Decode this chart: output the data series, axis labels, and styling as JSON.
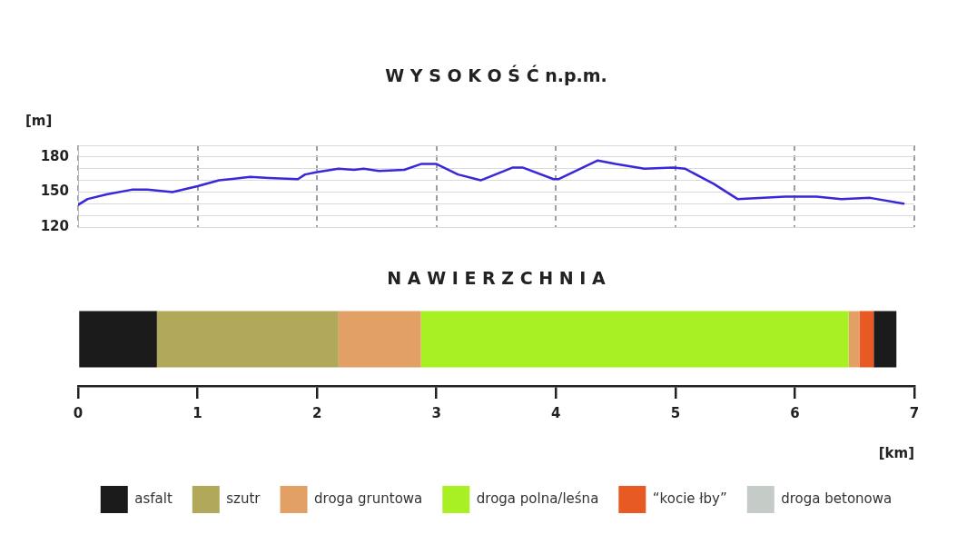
{
  "chart_data": [
    {
      "type": "line",
      "title": "W Y S O K O Ś Ć n.p.m.",
      "ylabel": "[m]",
      "xlim": [
        0,
        7
      ],
      "xticks": [
        0,
        1,
        2,
        3,
        4,
        5,
        6,
        7
      ],
      "ylim": [
        120,
        190
      ],
      "yticks": [
        120,
        {
          "value": 130,
          "label": null
        },
        {
          "value": 140,
          "label": null
        },
        150,
        {
          "value": 160,
          "label": null
        },
        {
          "value": 170,
          "label": null
        },
        180,
        {
          "value": 190,
          "label": null
        }
      ],
      "grid": true,
      "tick_labels": "y",
      "legend": false,
      "marker": "none",
      "line_style": "solid",
      "x": [
        0,
        0.08,
        0.24,
        0.45,
        0.58,
        0.79,
        1.0,
        1.18,
        1.44,
        1.6,
        1.84,
        1.9,
        2.0,
        2.18,
        2.31,
        2.39,
        2.52,
        2.73,
        2.87,
        3.0,
        3.18,
        3.37,
        3.64,
        3.72,
        3.98,
        4.02,
        4.35,
        4.5,
        4.74,
        4.98,
        5.08,
        5.32,
        5.52,
        5.92,
        6.18,
        6.39,
        6.63,
        6.91
      ],
      "series": [
        {
          "color": "#3a28d8",
          "values": [
            139,
            144,
            148,
            152,
            152,
            150,
            155,
            160,
            163,
            162,
            161,
            165,
            167,
            170,
            169,
            170,
            168,
            169,
            174,
            174,
            165,
            160,
            171,
            171,
            161,
            161,
            177,
            174,
            170,
            171,
            170,
            157,
            144,
            146,
            146,
            144,
            145,
            140
          ]
        }
      ]
    },
    {
      "type": "bar",
      "title": "N A W I E R Z C H N I A",
      "xlabel": "[km]",
      "orientation": "horizontal",
      "stacked": true,
      "xlim": [
        0,
        7
      ],
      "xticks": [
        0,
        1,
        2,
        3,
        4,
        5,
        6,
        7
      ],
      "grid": false,
      "legend": "bottom",
      "categories": [
        null
      ],
      "series": [
        {
          "name": "asfalt",
          "color": "#1b1b1b",
          "values": [
            0.66
          ]
        },
        {
          "name": "szutr",
          "color": "#b2a85a",
          "values": [
            1.52
          ]
        },
        {
          "name": "droga gruntowa",
          "color": "#e2a064",
          "values": [
            0.69
          ]
        },
        {
          "name": "droga polna/leśna",
          "color": "#a8f024",
          "values": [
            3.58
          ]
        },
        {
          "color": "#e2a064",
          "values": [
            0.09
          ]
        },
        {
          "name": "“kocie łby”",
          "color": "#e85a24",
          "values": [
            0.12
          ]
        },
        {
          "color": "#1b1b1b",
          "values": [
            0.19
          ]
        },
        {
          "name": "droga betonowa",
          "color": "#c5cbc7",
          "values": [
            0
          ]
        }
      ]
    }
  ]
}
